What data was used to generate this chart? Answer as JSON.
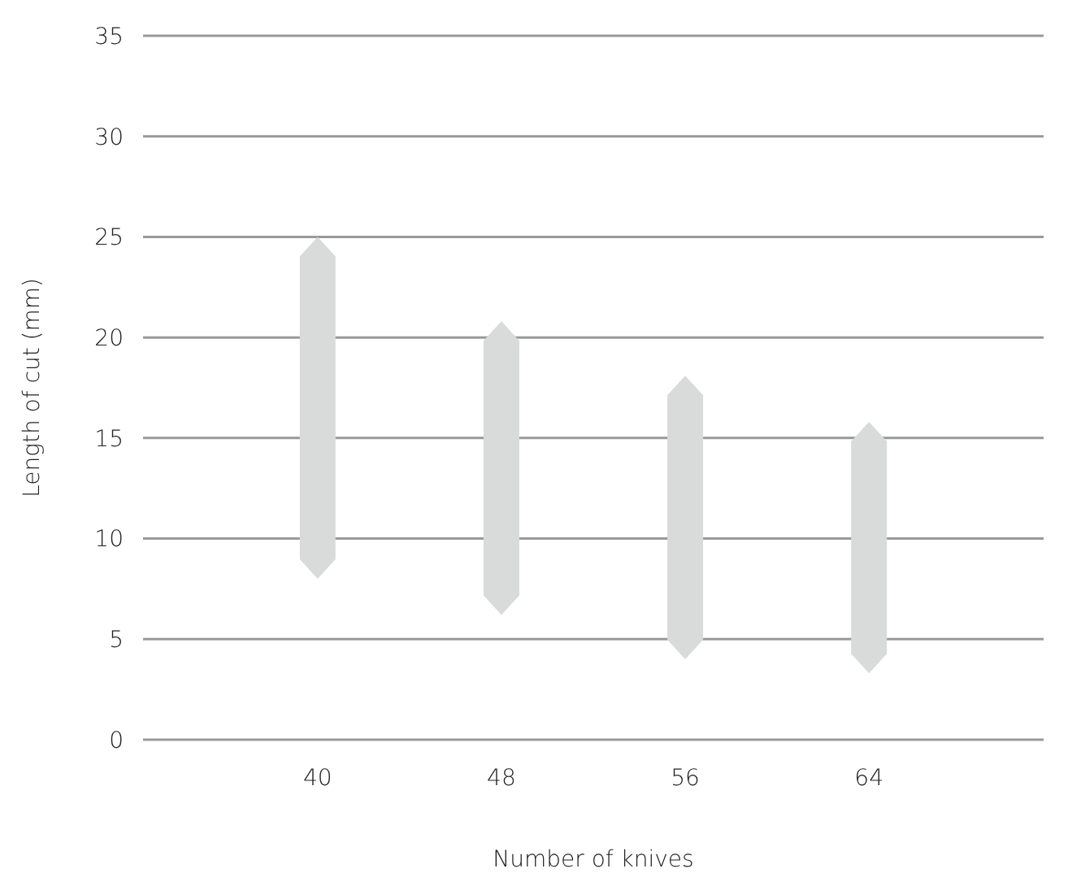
{
  "chart_data": {
    "type": "bar",
    "xlabel": "Number of knives",
    "ylabel": "Length of cut (mm)",
    "categories": [
      "40",
      "48",
      "56",
      "64"
    ],
    "base": [
      8,
      6.2,
      4,
      3.3
    ],
    "values": [
      17,
      14.6,
      14.1,
      12.5
    ],
    "color": "#d9dada",
    "ylim": [
      0,
      35
    ],
    "yticks": [
      0,
      5,
      10,
      15,
      20,
      25,
      30,
      35
    ],
    "grid": "y"
  }
}
